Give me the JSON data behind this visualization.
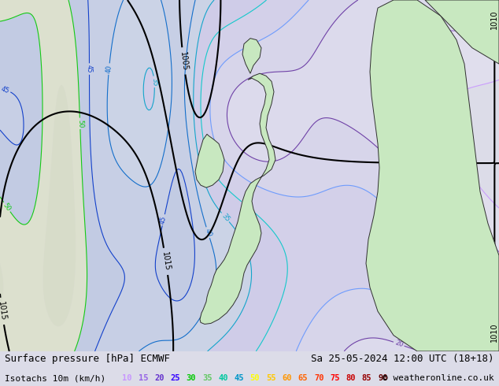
{
  "title_left": "Surface pressure [hPa] ECMWF",
  "title_right": "Sa 25-05-2024 12:00 UTC (18+18)",
  "subtitle_left": "Isotachs 10m (km/h)",
  "copyright": "© weatheronline.co.uk",
  "isotach_values": [
    10,
    15,
    20,
    25,
    30,
    35,
    40,
    45,
    50,
    55,
    60,
    65,
    70,
    75,
    80,
    85,
    90
  ],
  "isotach_legend_colors": [
    "#c896ff",
    "#9664e6",
    "#6432cd",
    "#3200ff",
    "#00c800",
    "#64c864",
    "#00c8a0",
    "#0096c8",
    "#ffff00",
    "#ffc800",
    "#ff9600",
    "#ff6400",
    "#ff3200",
    "#ff0000",
    "#c80000",
    "#960000",
    "#640000"
  ],
  "map_bg_color": "#dcdce8",
  "land_color": "#c8e8c0",
  "bottom_bar_color": "#ffffff",
  "title_fontsize": 9,
  "label_fontsize": 8,
  "legend_fontsize": 7.5,
  "fig_width": 6.34,
  "fig_height": 4.9,
  "dpi": 100,
  "contour_colors_isotach": {
    "10": "#c896ff",
    "15": "#9664e6",
    "20": "#6432cd",
    "25": "#3200ff",
    "30": "#00c8c8",
    "35": "#0096c8",
    "40": "#0064c8",
    "45": "#0032c8",
    "50": "#00c800",
    "55": "#64c800",
    "60": "#c8c800",
    "65": "#c86400",
    "70": "#c83200",
    "75": "#c80000",
    "80": "#960000",
    "85": "#640000",
    "90": "#320000"
  }
}
